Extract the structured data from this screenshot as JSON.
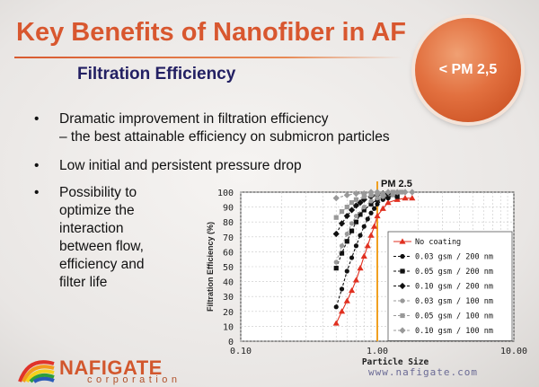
{
  "slide": {
    "title": "Key Benefits of Nanofiber in AF",
    "subtitle": "Filtration Efficiency",
    "badge": "< PM 2,5",
    "bullets": [
      {
        "line1": "Dramatic improvement in filtration efficiency",
        "line2": "– the best attainable efficiency on submicron particles"
      },
      {
        "line1": "Low initial and persistent pressure drop"
      },
      {
        "lines": [
          "Possibility to",
          "optimize the",
          "interaction",
          "between flow,",
          "efficiency and",
          "filter life"
        ]
      }
    ],
    "bullet_symbol": "•",
    "logo_name": "NAFIGATE",
    "logo_sub": "corporation",
    "website": "www.nafigate.com"
  },
  "chart_data": {
    "type": "line",
    "x_scale": "log",
    "xlim": [
      0.1,
      10
    ],
    "ylim": [
      0,
      100
    ],
    "xlabel": "Particle Size",
    "ylabel": "Filtration Efficiency (%)",
    "x_ticks": [
      "0.10",
      "1.00",
      "10.00"
    ],
    "y_ticks": [
      "0",
      "10",
      "20",
      "30",
      "40",
      "50",
      "60",
      "70",
      "80",
      "90",
      "100"
    ],
    "reference_line": {
      "x": 1.0,
      "label": "PM 2.5",
      "color": "#f0a020"
    },
    "grid": true,
    "legend_position": "bottom-right",
    "series": [
      {
        "name": "No coating",
        "color": "#e03020",
        "marker": "triangle",
        "x": [
          0.5,
          0.55,
          0.6,
          0.65,
          0.7,
          0.75,
          0.8,
          0.85,
          0.9,
          0.95,
          1.0,
          1.1,
          1.2,
          1.4,
          1.6,
          1.8
        ],
        "y": [
          12,
          20,
          27,
          34,
          41,
          49,
          57,
          64,
          71,
          77,
          84,
          89,
          93,
          95,
          96,
          96
        ]
      },
      {
        "name": "0.03 gsm / 200 nm",
        "color": "#111111",
        "marker": "circle",
        "x": [
          0.5,
          0.55,
          0.6,
          0.65,
          0.7,
          0.75,
          0.8,
          0.85,
          0.9,
          0.95,
          1.0,
          1.1,
          1.2
        ],
        "y": [
          23,
          35,
          47,
          56,
          64,
          71,
          77,
          82,
          86,
          89,
          92,
          95,
          96
        ]
      },
      {
        "name": "0.05 gsm / 200 nm",
        "color": "#111111",
        "marker": "square",
        "x": [
          0.5,
          0.55,
          0.6,
          0.65,
          0.7,
          0.75,
          0.8,
          0.9,
          1.0,
          1.1,
          1.2,
          1.4
        ],
        "y": [
          49,
          59,
          67,
          74,
          80,
          85,
          88,
          92,
          95,
          96,
          97,
          97
        ]
      },
      {
        "name": "0.10 gsm / 200 nm",
        "color": "#111111",
        "marker": "diamond",
        "x": [
          0.5,
          0.55,
          0.6,
          0.65,
          0.7,
          0.75,
          0.8,
          0.9,
          1.0,
          1.1,
          1.2
        ],
        "y": [
          72,
          79,
          84,
          88,
          91,
          93,
          95,
          97,
          98,
          99,
          99
        ]
      },
      {
        "name": "0.03 gsm / 100 nm",
        "color": "#999999",
        "marker": "circle",
        "x": [
          0.5,
          0.55,
          0.6,
          0.65,
          0.7,
          0.8,
          0.9,
          1.0,
          1.1,
          1.3
        ],
        "y": [
          53,
          64,
          72,
          79,
          84,
          90,
          94,
          96,
          97,
          98
        ]
      },
      {
        "name": "0.05 gsm / 100 nm",
        "color": "#999999",
        "marker": "square",
        "x": [
          0.5,
          0.55,
          0.6,
          0.65,
          0.7,
          0.8,
          0.9,
          1.0,
          1.1,
          1.3,
          1.5
        ],
        "y": [
          83,
          87,
          90,
          93,
          95,
          97,
          98,
          99,
          99,
          100,
          100
        ]
      },
      {
        "name": "0.10 gsm / 100 nm",
        "color": "#999999",
        "marker": "diamond",
        "x": [
          0.5,
          0.6,
          0.7,
          0.8,
          0.9,
          1.0,
          1.2,
          1.4,
          1.6,
          1.8
        ],
        "y": [
          96,
          98,
          99,
          99,
          100,
          100,
          100,
          100,
          100,
          100
        ]
      }
    ]
  }
}
